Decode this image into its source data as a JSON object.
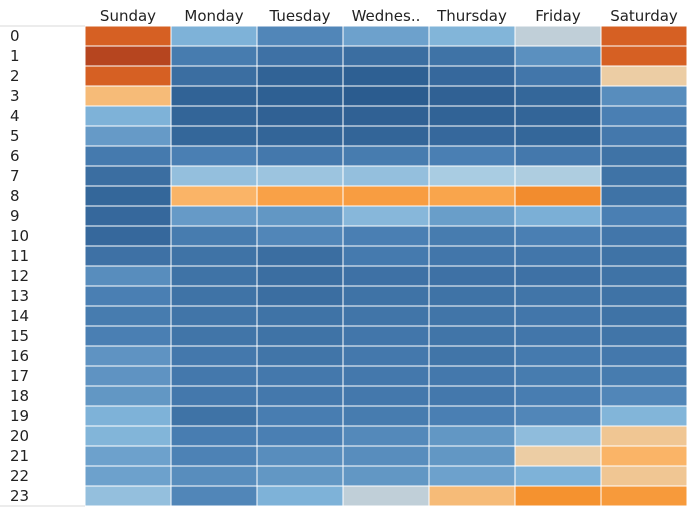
{
  "chart_data": {
    "type": "heatmap",
    "columns": [
      "Sunday",
      "Monday",
      "Tuesday",
      "Wednes..",
      "Thursday",
      "Friday",
      "Saturday"
    ],
    "rows": [
      "0",
      "1",
      "2",
      "3",
      "4",
      "5",
      "6",
      "7",
      "8",
      "9",
      "10",
      "11",
      "12",
      "13",
      "14",
      "15",
      "16",
      "17",
      "18",
      "19",
      "20",
      "21",
      "22",
      "23"
    ],
    "color_scale": {
      "type": "diverging",
      "low_color": "#2b5c8f",
      "mid_color": "#c9d0d4",
      "high_color": "#a63a1d"
    },
    "values": [
      [
        0.85,
        0.35,
        0.22,
        0.3,
        0.36,
        0.5,
        0.85
      ],
      [
        0.95,
        0.18,
        0.12,
        0.1,
        0.13,
        0.25,
        0.85
      ],
      [
        0.85,
        0.1,
        0.04,
        0.02,
        0.07,
        0.15,
        0.6
      ],
      [
        0.65,
        0.04,
        0.02,
        0.0,
        0.03,
        0.06,
        0.24
      ],
      [
        0.35,
        0.05,
        0.03,
        0.03,
        0.04,
        0.05,
        0.2
      ],
      [
        0.28,
        0.06,
        0.05,
        0.05,
        0.07,
        0.06,
        0.16
      ],
      [
        0.17,
        0.2,
        0.16,
        0.18,
        0.2,
        0.16,
        0.13
      ],
      [
        0.1,
        0.4,
        0.42,
        0.4,
        0.45,
        0.46,
        0.13
      ],
      [
        0.06,
        0.67,
        0.72,
        0.73,
        0.71,
        0.77,
        0.13
      ],
      [
        0.07,
        0.28,
        0.27,
        0.37,
        0.29,
        0.34,
        0.2
      ],
      [
        0.07,
        0.18,
        0.22,
        0.2,
        0.18,
        0.2,
        0.15
      ],
      [
        0.12,
        0.13,
        0.1,
        0.17,
        0.15,
        0.15,
        0.13
      ],
      [
        0.24,
        0.13,
        0.1,
        0.12,
        0.12,
        0.12,
        0.13
      ],
      [
        0.2,
        0.13,
        0.1,
        0.13,
        0.13,
        0.14,
        0.13
      ],
      [
        0.18,
        0.14,
        0.13,
        0.14,
        0.14,
        0.15,
        0.13
      ],
      [
        0.2,
        0.14,
        0.13,
        0.15,
        0.14,
        0.15,
        0.14
      ],
      [
        0.26,
        0.16,
        0.14,
        0.16,
        0.14,
        0.17,
        0.16
      ],
      [
        0.26,
        0.16,
        0.16,
        0.16,
        0.16,
        0.18,
        0.18
      ],
      [
        0.27,
        0.16,
        0.16,
        0.16,
        0.16,
        0.19,
        0.22
      ],
      [
        0.35,
        0.13,
        0.19,
        0.18,
        0.2,
        0.22,
        0.36
      ],
      [
        0.36,
        0.19,
        0.2,
        0.23,
        0.27,
        0.39,
        0.62
      ],
      [
        0.3,
        0.21,
        0.24,
        0.24,
        0.27,
        0.6,
        0.67
      ],
      [
        0.3,
        0.24,
        0.27,
        0.27,
        0.3,
        0.35,
        0.62
      ],
      [
        0.4,
        0.22,
        0.35,
        0.5,
        0.65,
        0.76,
        0.74
      ]
    ]
  }
}
